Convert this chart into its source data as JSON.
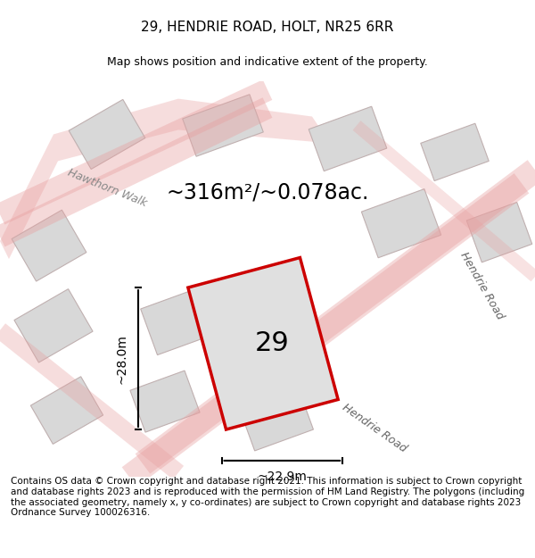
{
  "title": "29, HENDRIE ROAD, HOLT, NR25 6RR",
  "subtitle": "Map shows position and indicative extent of the property.",
  "area_text": "~316m²/~0.078ac.",
  "label_number": "29",
  "dim_width": "~22.9m",
  "dim_height": "~28.0m",
  "road_label1": "Hendrie Road",
  "road_label2": "Hendrie Road",
  "hawthorn_label": "Hawthorn Walk",
  "footer_text": "Contains OS data © Crown copyright and database right 2021. This information is subject to Crown copyright and database rights 2023 and is reproduced with the permission of HM Land Registry. The polygons (including the associated geometry, namely x, y co-ordinates) are subject to Crown copyright and database rights 2023 Ordnance Survey 100026316.",
  "bg_color": "#f2f2f2",
  "map_bg": "#f2f2f2",
  "road_color": "#e8a0a0",
  "building_color": "#d8d8d8",
  "highlight_color": "#cc0000",
  "highlight_fill": "#e8e8e8",
  "title_fontsize": 11,
  "subtitle_fontsize": 9,
  "area_fontsize": 17,
  "label_fontsize": 22,
  "dim_fontsize": 10,
  "footer_fontsize": 7.5
}
